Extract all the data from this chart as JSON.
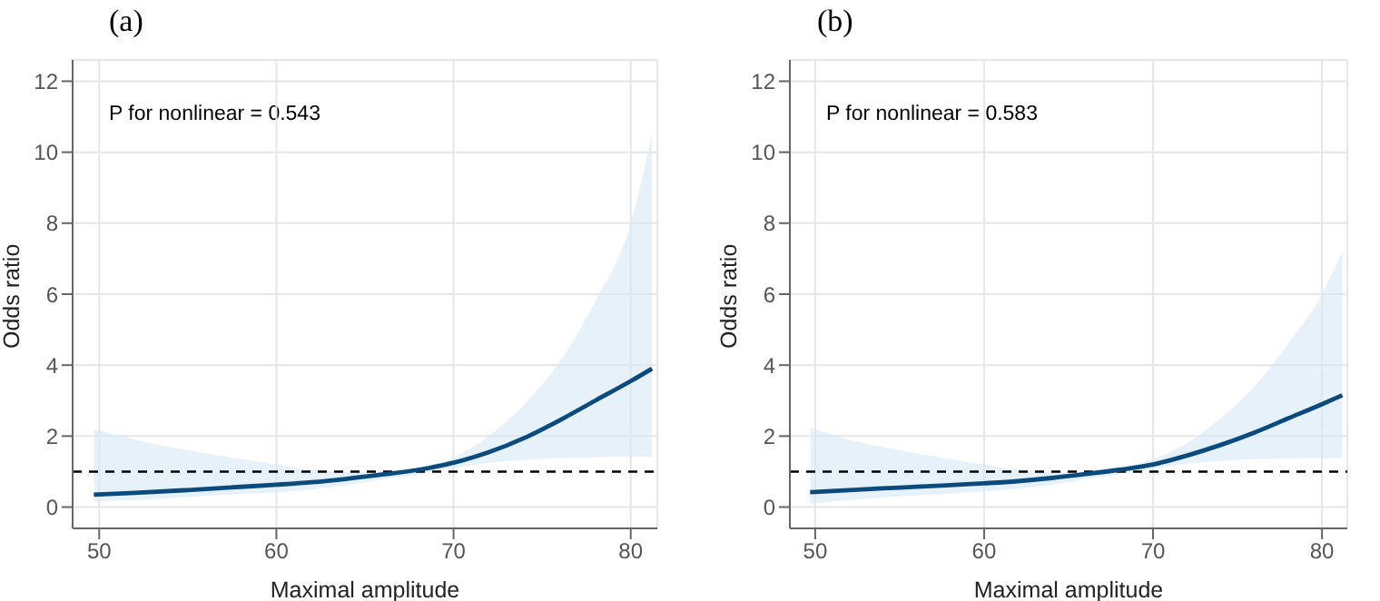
{
  "chart_data": [
    {
      "type": "line",
      "title": "(a)",
      "xlabel": "Maximal amplitude",
      "ylabel": "Odds ratio",
      "annotations": [
        "P for nonlinear = 0.543"
      ],
      "x": [
        49.7,
        52,
        55,
        58,
        60,
        62,
        64,
        66,
        68,
        70,
        72,
        74,
        76,
        78,
        80,
        81.2
      ],
      "series": [
        {
          "color": "#0b4a7d",
          "values": [
            0.35,
            0.4,
            0.48,
            0.57,
            0.63,
            0.7,
            0.8,
            0.92,
            1.05,
            1.25,
            1.55,
            1.95,
            2.45,
            3.0,
            3.55,
            3.9
          ],
          "lower": [
            0.15,
            0.2,
            0.28,
            0.37,
            0.42,
            0.5,
            0.62,
            0.78,
            0.93,
            1.1,
            1.25,
            1.33,
            1.38,
            1.4,
            1.42,
            1.42
          ],
          "upper": [
            2.2,
            1.9,
            1.6,
            1.35,
            1.2,
            1.05,
            1.0,
            1.0,
            1.1,
            1.4,
            2.0,
            2.9,
            4.1,
            5.8,
            8.0,
            10.5
          ]
        }
      ],
      "xlim": [
        48.5,
        81.5
      ],
      "xticks": [
        50,
        60,
        70,
        80
      ],
      "ylim": [
        -0.6,
        12.6
      ],
      "yticks": [
        0,
        2,
        4,
        6,
        8,
        10,
        12
      ],
      "ref_lines": [
        {
          "axis": "y",
          "value": 1,
          "color": "#000000",
          "line_style": "dashed"
        }
      ],
      "grid": true,
      "line_style": "solid",
      "marker": "none"
    },
    {
      "type": "line",
      "title": "(b)",
      "xlabel": "Maximal amplitude",
      "ylabel": "Odds ratio",
      "annotations": [
        "P for nonlinear = 0.583"
      ],
      "x": [
        49.7,
        52,
        55,
        58,
        60,
        62,
        64,
        66,
        68,
        70,
        72,
        74,
        76,
        78,
        80,
        81.2
      ],
      "series": [
        {
          "color": "#0b4a7d",
          "values": [
            0.42,
            0.48,
            0.55,
            0.62,
            0.67,
            0.73,
            0.82,
            0.93,
            1.05,
            1.2,
            1.45,
            1.75,
            2.1,
            2.5,
            2.9,
            3.15
          ],
          "lower": [
            0.1,
            0.2,
            0.3,
            0.38,
            0.44,
            0.52,
            0.63,
            0.78,
            0.93,
            1.08,
            1.22,
            1.3,
            1.35,
            1.37,
            1.38,
            1.38
          ],
          "upper": [
            2.25,
            1.9,
            1.6,
            1.35,
            1.2,
            1.05,
            1.0,
            1.0,
            1.1,
            1.35,
            1.8,
            2.5,
            3.4,
            4.6,
            6.0,
            7.2
          ]
        }
      ],
      "xlim": [
        48.5,
        81.5
      ],
      "xticks": [
        50,
        60,
        70,
        80
      ],
      "ylim": [
        -0.6,
        12.6
      ],
      "yticks": [
        0,
        2,
        4,
        6,
        8,
        10,
        12
      ],
      "ref_lines": [
        {
          "axis": "y",
          "value": 1,
          "color": "#000000",
          "line_style": "dashed"
        }
      ],
      "grid": true,
      "line_style": "solid",
      "marker": "none"
    }
  ]
}
